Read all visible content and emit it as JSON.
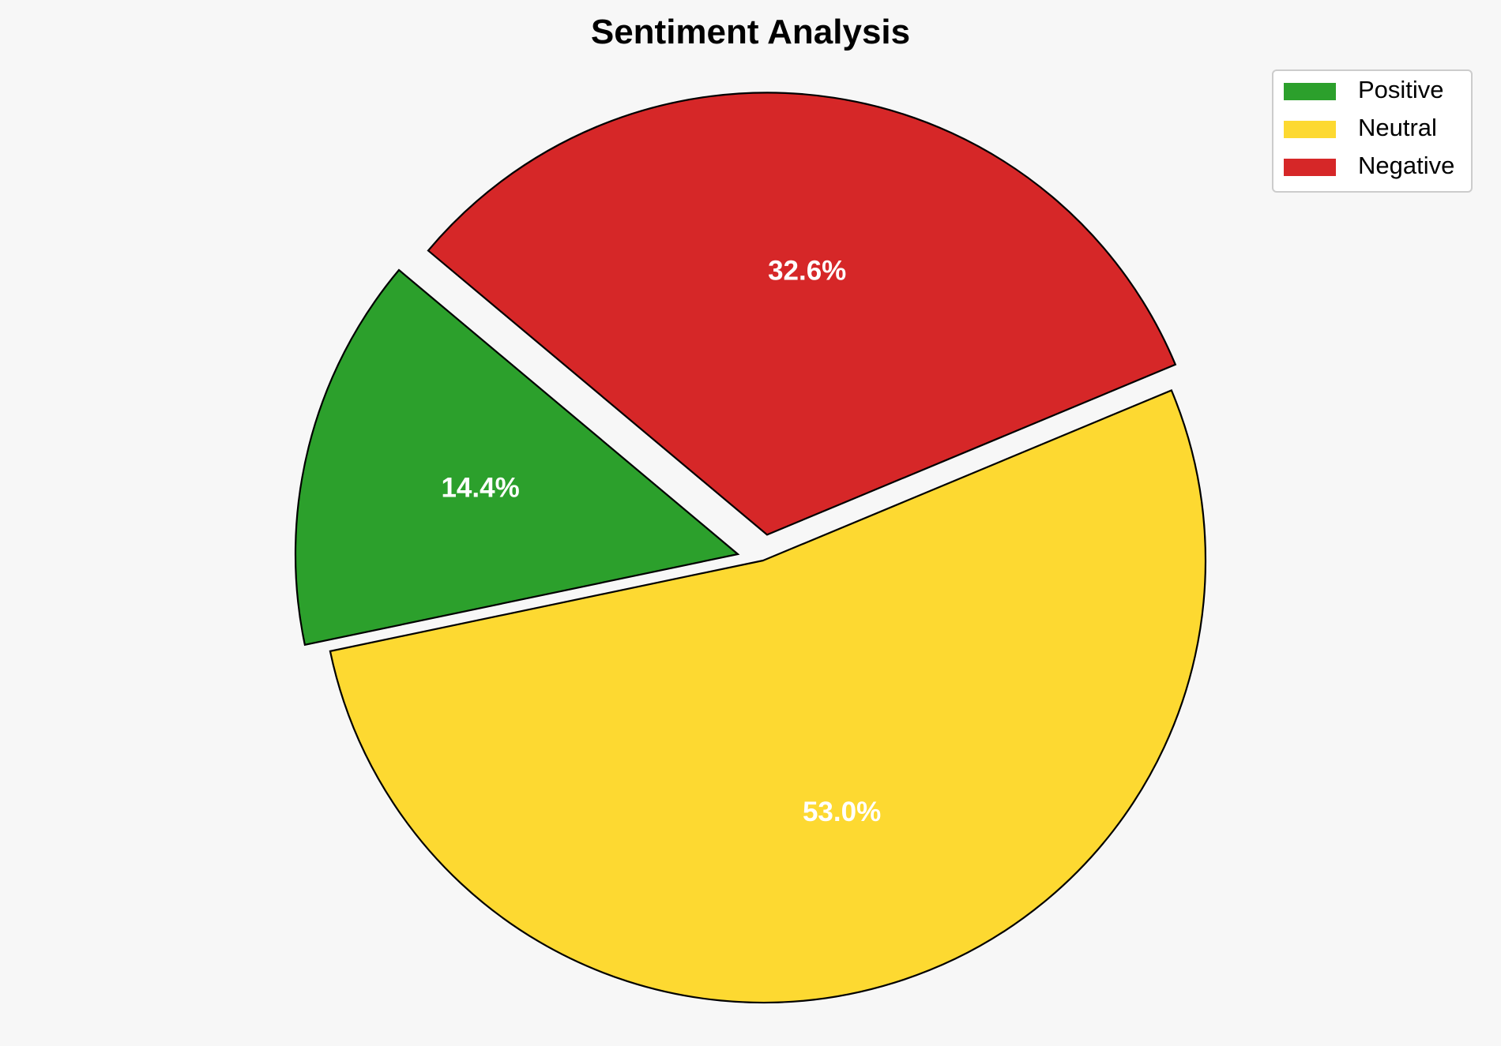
{
  "chart_data": {
    "type": "pie",
    "title": "Sentiment Analysis",
    "categories": [
      "Positive",
      "Neutral",
      "Negative"
    ],
    "values": [
      14.4,
      53.0,
      32.6
    ],
    "value_labels": [
      "14.4%",
      "53.0%",
      "32.6%"
    ],
    "colors": [
      "#2ca02c",
      "#fdd931",
      "#d62728"
    ],
    "exploded": [
      true,
      false,
      true
    ],
    "edge_color": "#000000",
    "legend": {
      "placement": "top-right",
      "entries": [
        "Positive",
        "Neutral",
        "Negative"
      ]
    }
  }
}
